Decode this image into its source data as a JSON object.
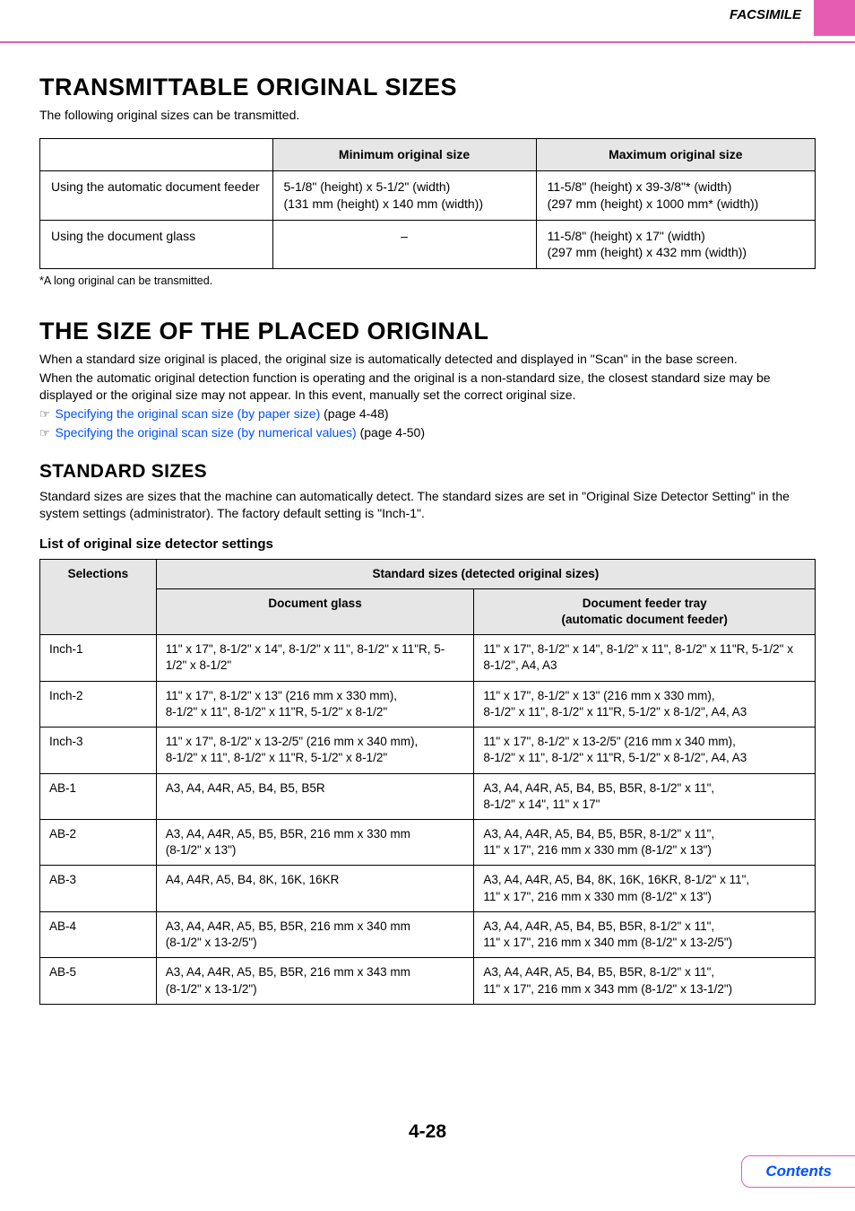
{
  "header": {
    "section_label": "FACSIMILE",
    "accent_color": "#e65cb3"
  },
  "section1": {
    "title": "TRANSMITTABLE ORIGINAL SIZES",
    "intro": "The following original sizes can be transmitted.",
    "table": {
      "headers": {
        "min": "Minimum original size",
        "max": "Maximum original size"
      },
      "rows": [
        {
          "label": "Using the automatic document feeder",
          "min": "5-1/8\" (height) x 5-1/2\" (width)\n(131 mm (height) x 140 mm (width))",
          "max": "11-5/8\" (height) x 39-3/8\"* (width)\n(297 mm (height) x 1000 mm* (width))"
        },
        {
          "label": "Using the document glass",
          "min": "–",
          "max": "11-5/8\" (height) x 17\" (width)\n(297 mm (height) x 432 mm (width))"
        }
      ]
    },
    "footnote": "*A long original can be transmitted."
  },
  "section2": {
    "title": "THE SIZE OF THE PLACED ORIGINAL",
    "para1": "When a standard size original is placed, the original size is automatically detected and displayed in \"Scan\" in the base screen.",
    "para2": "When the automatic original detection function is operating and the original is a non-standard size, the closest standard size may be displayed or the original size may not appear. In this event, manually set the correct original size.",
    "ref1_link": "Specifying the original scan size (by paper size)",
    "ref1_page": " (page 4-48)",
    "ref2_link": "Specifying the original scan size (by numerical values)",
    "ref2_page": " (page 4-50)",
    "subhead": "STANDARD SIZES",
    "sub_para": "Standard sizes are sizes that the machine can automatically detect. The standard sizes are set in \"Original Size Detector Setting\" in the system settings (administrator). The factory default setting is \"Inch-1\".",
    "list_head": "List of original size detector settings",
    "table": {
      "header_group": "Standard sizes (detected original sizes)",
      "header_sel": "Selections",
      "header_glass": "Document glass",
      "header_tray": "Document feeder tray\n(automatic document feeder)",
      "rows": [
        {
          "sel": "Inch-1",
          "glass": "11\" x 17\", 8-1/2\" x 14\", 8-1/2\" x 11\", 8-1/2\" x 11\"R, 5-1/2\" x 8-1/2\"",
          "tray": "11\" x 17\", 8-1/2\" x 14\", 8-1/2\" x 11\", 8-1/2\" x 11\"R, 5-1/2\" x 8-1/2\", A4, A3"
        },
        {
          "sel": "Inch-2",
          "glass": "11\" x 17\", 8-1/2\" x 13\" (216 mm x 330 mm),\n8-1/2\" x 11\", 8-1/2\" x 11\"R, 5-1/2\" x 8-1/2\"",
          "tray": "11\" x 17\", 8-1/2\" x 13\" (216 mm x 330 mm),\n8-1/2\" x 11\", 8-1/2\" x 11\"R, 5-1/2\" x 8-1/2\", A4, A3"
        },
        {
          "sel": "Inch-3",
          "glass": "11\" x 17\", 8-1/2\" x 13-2/5\" (216 mm x 340 mm),\n8-1/2\" x 11\", 8-1/2\" x 11\"R, 5-1/2\" x 8-1/2\"",
          "tray": "11\" x 17\", 8-1/2\" x 13-2/5\" (216 mm x 340 mm),\n8-1/2\" x 11\", 8-1/2\" x 11\"R, 5-1/2\" x 8-1/2\", A4, A3"
        },
        {
          "sel": "AB-1",
          "glass": "A3, A4, A4R, A5, B4, B5, B5R",
          "tray": "A3, A4, A4R, A5, B4, B5, B5R, 8-1/2\" x 11\",\n8-1/2\" x 14\", 11\" x 17\""
        },
        {
          "sel": "AB-2",
          "glass": "A3, A4, A4R, A5, B5, B5R, 216 mm x 330 mm\n(8-1/2\" x 13\")",
          "tray": "A3, A4, A4R, A5, B4, B5, B5R, 8-1/2\" x 11\",\n11\" x 17\", 216 mm x 330 mm (8-1/2\" x 13\")"
        },
        {
          "sel": "AB-3",
          "glass": "A4, A4R, A5, B4, 8K, 16K, 16KR",
          "tray": "A3, A4, A4R, A5, B4, 8K, 16K, 16KR, 8-1/2\" x 11\",\n11\" x 17\", 216 mm x 330 mm (8-1/2\" x 13\")"
        },
        {
          "sel": "AB-4",
          "glass": "A3, A4, A4R, A5, B5, B5R, 216 mm x 340 mm\n(8-1/2\" x 13-2/5\")",
          "tray": "A3, A4, A4R, A5, B4, B5, B5R, 8-1/2\" x 11\",\n11\" x 17\", 216 mm x 340 mm (8-1/2\" x 13-2/5\")"
        },
        {
          "sel": "AB-5",
          "glass": "A3, A4, A4R, A5, B5, B5R, 216 mm x 343 mm\n(8-1/2\" x 13-1/2\")",
          "tray": "A3, A4, A4R, A5, B4, B5, B5R, 8-1/2\" x 11\",\n11\" x 17\", 216 mm x 343 mm (8-1/2\" x 13-1/2\")"
        }
      ]
    }
  },
  "footer": {
    "page_number": "4-28",
    "contents_label": "Contents"
  },
  "icons": {
    "pointer": "☞"
  }
}
